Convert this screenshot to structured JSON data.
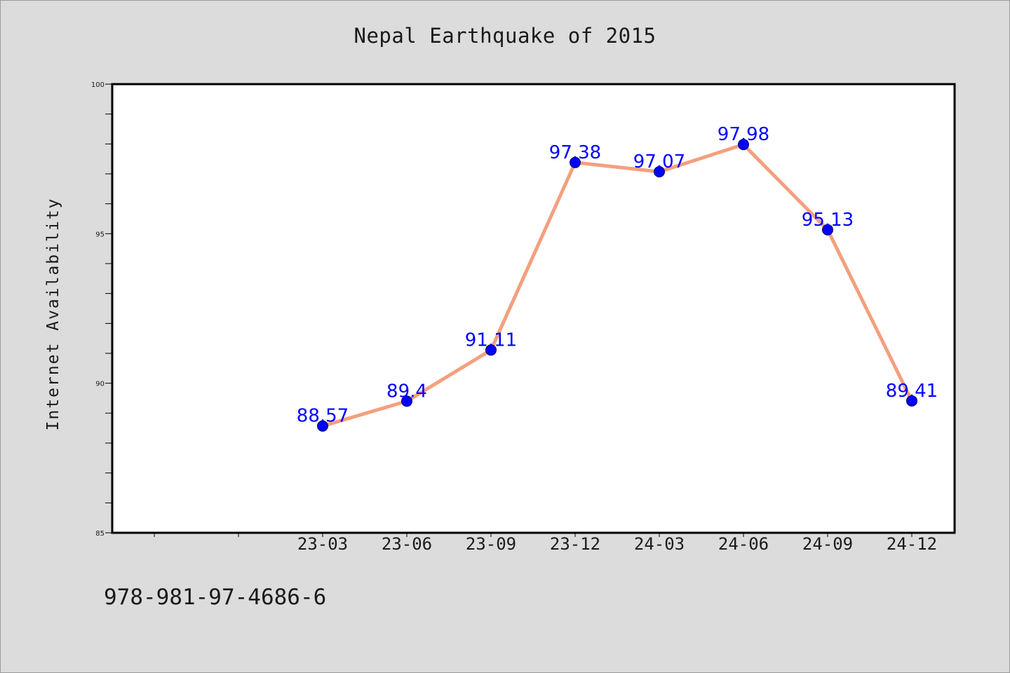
{
  "chart_data": {
    "type": "line",
    "title": "Nepal Earthquake of 2015",
    "xlabel": "",
    "ylabel": "Internet Availability",
    "categories": [
      "23-03",
      "23-06",
      "23-09",
      "23-12",
      "24-03",
      "24-06",
      "24-09",
      "24-12"
    ],
    "series": [
      {
        "values": [
          88.57,
          89.4,
          91.11,
          97.38,
          97.07,
          97.98,
          95.13,
          89.41
        ],
        "data_labels": [
          "88.57",
          "89.4",
          "91.11",
          "97.38",
          "97.07",
          "97.98",
          "95.13",
          "89.41"
        ]
      }
    ],
    "ylim": [
      85,
      100
    ],
    "yticks": [
      85,
      90,
      95,
      100
    ],
    "ytick_labels": [
      "85",
      "90",
      "95",
      "100"
    ],
    "grid": false,
    "legend": "none",
    "colors": {
      "line": "#f4a07f",
      "marker": "#0000ff",
      "data_label": "#0000ff",
      "plot_background": "#ffffff",
      "figure_background": "#dcdcdc"
    }
  },
  "footer_text": "978-981-97-4686-6"
}
